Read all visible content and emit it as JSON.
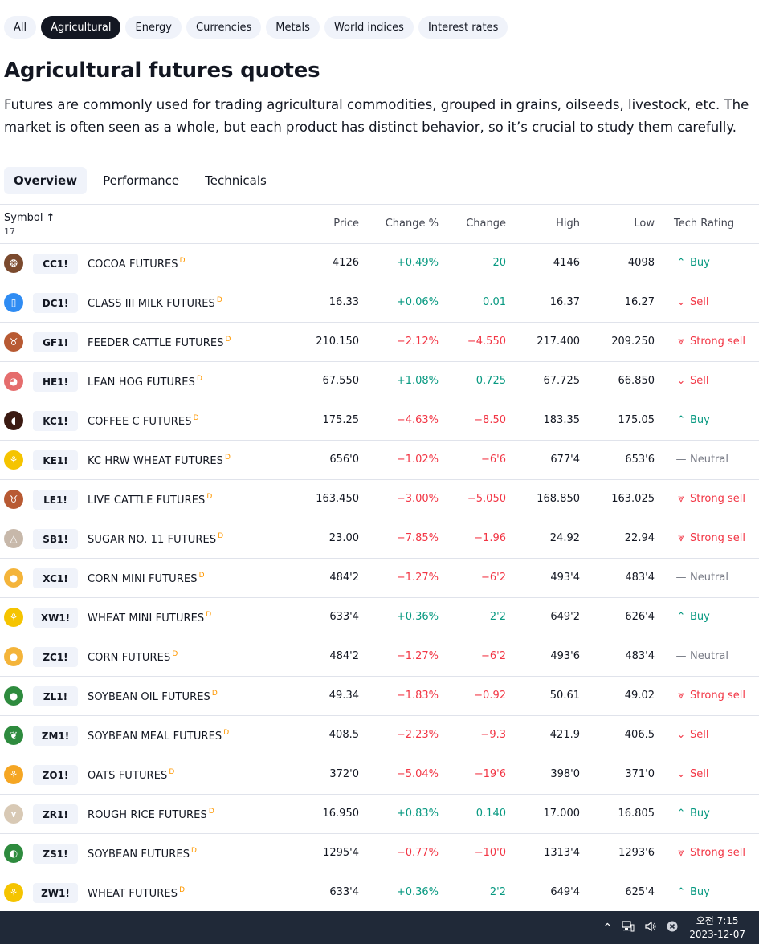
{
  "categories": [
    {
      "label": "All",
      "active": false
    },
    {
      "label": "Agricultural",
      "active": true
    },
    {
      "label": "Energy",
      "active": false
    },
    {
      "label": "Currencies",
      "active": false
    },
    {
      "label": "Metals",
      "active": false
    },
    {
      "label": "World indices",
      "active": false
    },
    {
      "label": "Interest rates",
      "active": false
    }
  ],
  "page": {
    "title": "Agricultural futures quotes",
    "description": "Futures are commonly used for trading agricultural commodities, grouped in grains, oilseeds, livestock, etc. The market is often seen as a whole, but each product has distinct behavior, so it’s crucial to study them carefully."
  },
  "tabs": [
    {
      "label": "Overview",
      "active": true
    },
    {
      "label": "Performance",
      "active": false
    },
    {
      "label": "Technicals",
      "active": false
    }
  ],
  "table": {
    "headers": {
      "symbol": "Symbol",
      "sort_icon": "↑",
      "count": "17",
      "price": "Price",
      "change_pct": "Change %",
      "change": "Change",
      "high": "High",
      "low": "Low",
      "rating": "Tech Rating"
    },
    "rows": [
      {
        "icon": "cocoa-icon",
        "color": "#7b4a2e",
        "ticker": "CC1!",
        "name": "COCOA FUTURES",
        "badge": "D",
        "price": "4126",
        "change_pct": "+0.49%",
        "change": "20",
        "high": "4146",
        "low": "4098",
        "rating": "Buy",
        "dir": "pos",
        "rdir": "pos",
        "ricon": "⌃"
      },
      {
        "icon": "milk-icon",
        "color": "#2f8cf3",
        "ticker": "DC1!",
        "name": "CLASS III MILK FUTURES",
        "badge": "D",
        "price": "16.33",
        "change_pct": "+0.06%",
        "change": "0.01",
        "high": "16.37",
        "low": "16.27",
        "rating": "Sell",
        "dir": "pos",
        "rdir": "neg",
        "ricon": "⌄"
      },
      {
        "icon": "cattle-icon",
        "color": "#b85a33",
        "ticker": "GF1!",
        "name": "FEEDER CATTLE FUTURES",
        "badge": "D",
        "price": "210.150",
        "change_pct": "−2.12%",
        "change": "−4.550",
        "high": "217.400",
        "low": "209.250",
        "rating": "Strong sell",
        "dir": "neg",
        "rdir": "neg",
        "ricon": "⩔"
      },
      {
        "icon": "hog-icon",
        "color": "#e56d6d",
        "ticker": "HE1!",
        "name": "LEAN HOG FUTURES",
        "badge": "D",
        "price": "67.550",
        "change_pct": "+1.08%",
        "change": "0.725",
        "high": "67.725",
        "low": "66.850",
        "rating": "Sell",
        "dir": "pos",
        "rdir": "neg",
        "ricon": "⌄"
      },
      {
        "icon": "coffee-icon",
        "color": "#3b1a12",
        "ticker": "KC1!",
        "name": "COFFEE C FUTURES",
        "badge": "D",
        "price": "175.25",
        "change_pct": "−4.63%",
        "change": "−8.50",
        "high": "183.35",
        "low": "175.05",
        "rating": "Buy",
        "dir": "neg",
        "rdir": "pos",
        "ricon": "⌃"
      },
      {
        "icon": "wheat-icon",
        "color": "#f5c400",
        "ticker": "KE1!",
        "name": "KC HRW WHEAT FUTURES",
        "badge": "D",
        "price": "656'0",
        "change_pct": "−1.02%",
        "change": "−6'6",
        "high": "677'4",
        "low": "653'6",
        "rating": "Neutral",
        "dir": "neg",
        "rdir": "neu",
        "ricon": "—"
      },
      {
        "icon": "cattle-icon",
        "color": "#b85a33",
        "ticker": "LE1!",
        "name": "LIVE CATTLE FUTURES",
        "badge": "D",
        "price": "163.450",
        "change_pct": "−3.00%",
        "change": "−5.050",
        "high": "168.850",
        "low": "163.025",
        "rating": "Strong sell",
        "dir": "neg",
        "rdir": "neg",
        "ricon": "⩔"
      },
      {
        "icon": "sugar-icon",
        "color": "#c7b8aa",
        "ticker": "SB1!",
        "name": "SUGAR NO. 11 FUTURES",
        "badge": "D",
        "price": "23.00",
        "change_pct": "−7.85%",
        "change": "−1.96",
        "high": "24.92",
        "low": "22.94",
        "rating": "Strong sell",
        "dir": "neg",
        "rdir": "neg",
        "ricon": "⩔"
      },
      {
        "icon": "corn-icon",
        "color": "#f4b43a",
        "ticker": "XC1!",
        "name": "CORN MINI FUTURES",
        "badge": "D",
        "price": "484'2",
        "change_pct": "−1.27%",
        "change": "−6'2",
        "high": "493'4",
        "low": "483'4",
        "rating": "Neutral",
        "dir": "neg",
        "rdir": "neu",
        "ricon": "—"
      },
      {
        "icon": "wheat-icon",
        "color": "#f5c400",
        "ticker": "XW1!",
        "name": "WHEAT MINI FUTURES",
        "badge": "D",
        "price": "633'4",
        "change_pct": "+0.36%",
        "change": "2'2",
        "high": "649'2",
        "low": "626'4",
        "rating": "Buy",
        "dir": "pos",
        "rdir": "pos",
        "ricon": "⌃"
      },
      {
        "icon": "corn-icon",
        "color": "#f4b43a",
        "ticker": "ZC1!",
        "name": "CORN FUTURES",
        "badge": "D",
        "price": "484'2",
        "change_pct": "−1.27%",
        "change": "−6'2",
        "high": "493'6",
        "low": "483'4",
        "rating": "Neutral",
        "dir": "neg",
        "rdir": "neu",
        "ricon": "—"
      },
      {
        "icon": "soybean-oil-icon",
        "color": "#2e8b3e",
        "ticker": "ZL1!",
        "name": "SOYBEAN OIL FUTURES",
        "badge": "D",
        "price": "49.34",
        "change_pct": "−1.83%",
        "change": "−0.92",
        "high": "50.61",
        "low": "49.02",
        "rating": "Strong sell",
        "dir": "neg",
        "rdir": "neg",
        "ricon": "⩔"
      },
      {
        "icon": "soybean-meal-icon",
        "color": "#2e8b3e",
        "ticker": "ZM1!",
        "name": "SOYBEAN MEAL FUTURES",
        "badge": "D",
        "price": "408.5",
        "change_pct": "−2.23%",
        "change": "−9.3",
        "high": "421.9",
        "low": "406.5",
        "rating": "Sell",
        "dir": "neg",
        "rdir": "neg",
        "ricon": "⌄"
      },
      {
        "icon": "oats-icon",
        "color": "#f5a623",
        "ticker": "ZO1!",
        "name": "OATS FUTURES",
        "badge": "D",
        "price": "372'0",
        "change_pct": "−5.04%",
        "change": "−19'6",
        "high": "398'0",
        "low": "371'0",
        "rating": "Sell",
        "dir": "neg",
        "rdir": "neg",
        "ricon": "⌄"
      },
      {
        "icon": "rice-icon",
        "color": "#d8c9b5",
        "ticker": "ZR1!",
        "name": "ROUGH RICE FUTURES",
        "badge": "D",
        "price": "16.950",
        "change_pct": "+0.83%",
        "change": "0.140",
        "high": "17.000",
        "low": "16.805",
        "rating": "Buy",
        "dir": "pos",
        "rdir": "pos",
        "ricon": "⌃"
      },
      {
        "icon": "soybean-icon",
        "color": "#2e8b3e",
        "ticker": "ZS1!",
        "name": "SOYBEAN FUTURES",
        "badge": "D",
        "price": "1295'4",
        "change_pct": "−0.77%",
        "change": "−10'0",
        "high": "1313'4",
        "low": "1293'6",
        "rating": "Strong sell",
        "dir": "neg",
        "rdir": "neg",
        "ricon": "⩔"
      },
      {
        "icon": "wheat-icon",
        "color": "#f5c400",
        "ticker": "ZW1!",
        "name": "WHEAT FUTURES",
        "badge": "D",
        "price": "633'4",
        "change_pct": "+0.36%",
        "change": "2'2",
        "high": "649'4",
        "low": "625'4",
        "rating": "Buy",
        "dir": "pos",
        "rdir": "pos",
        "ricon": "⌃"
      }
    ]
  },
  "taskbar": {
    "tray_icons": [
      "chevron-up-icon",
      "network-icon",
      "volume-icon",
      "close-circle-icon"
    ],
    "time": "오전 7:15",
    "date": "2023-12-07"
  }
}
